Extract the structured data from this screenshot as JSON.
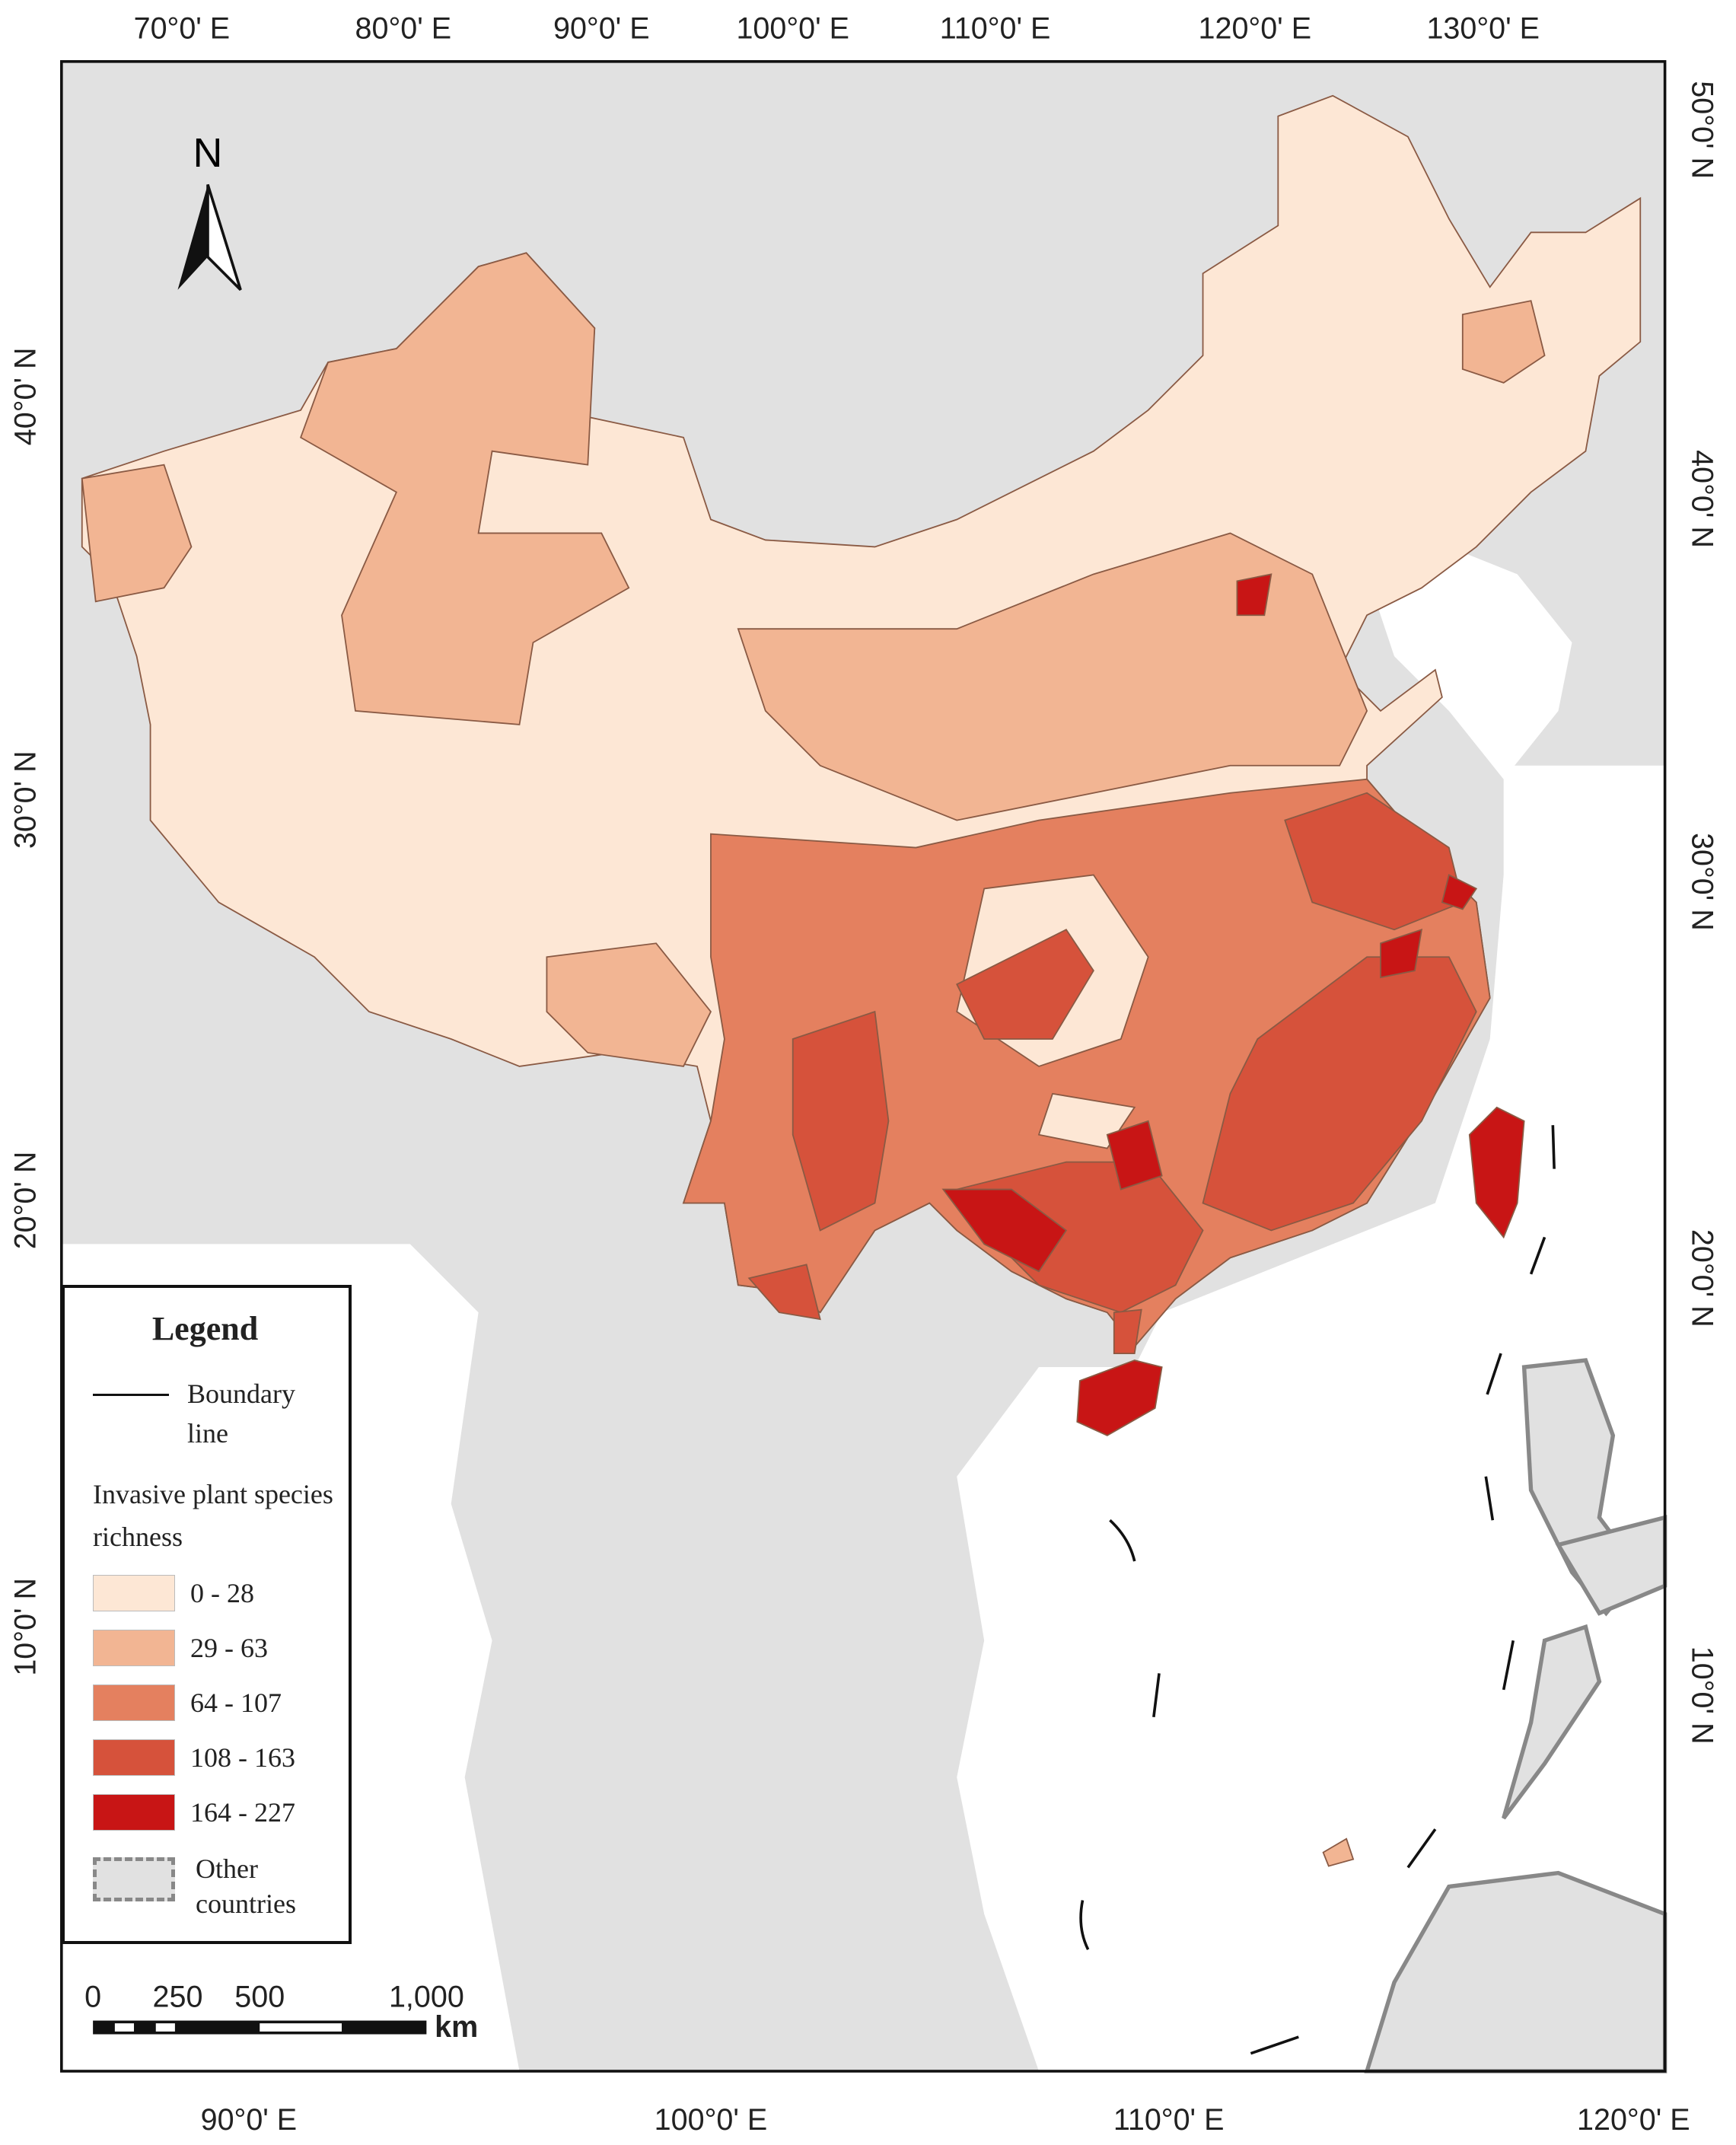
{
  "map": {
    "top_axis": [
      "70°0' E",
      "80°0' E",
      "90°0' E",
      "100°0' E",
      "110°0' E",
      "120°0' E",
      "130°0' E"
    ],
    "bottom_axis": [
      "90°0' E",
      "100°0' E",
      "110°0' E",
      "120°0' E"
    ],
    "left_axis": [
      "40°0' N",
      "30°0' N",
      "20°0' N",
      "10°0' N"
    ],
    "right_axis": [
      "50°0' N",
      "40°0' N",
      "30°0' N",
      "20°0' N",
      "10°0' N"
    ],
    "north_arrow": "N",
    "legend": {
      "title": "Legend",
      "boundary": "Boundary line",
      "heading": "Invasive plant species richness",
      "classes": [
        {
          "label": "0 - 28",
          "color": "#fde7d5"
        },
        {
          "label": "29 - 63",
          "color": "#f2b593"
        },
        {
          "label": "64 - 107",
          "color": "#e4805f"
        },
        {
          "label": "108 - 163",
          "color": "#d6523b"
        },
        {
          "label": "164 - 227",
          "color": "#c81515"
        }
      ],
      "other": {
        "label": "Other countries",
        "color": "#e1e1e1"
      }
    },
    "scale_bar": {
      "ticks": [
        "0",
        "250",
        "500",
        "1,000"
      ],
      "unit": "km"
    }
  }
}
